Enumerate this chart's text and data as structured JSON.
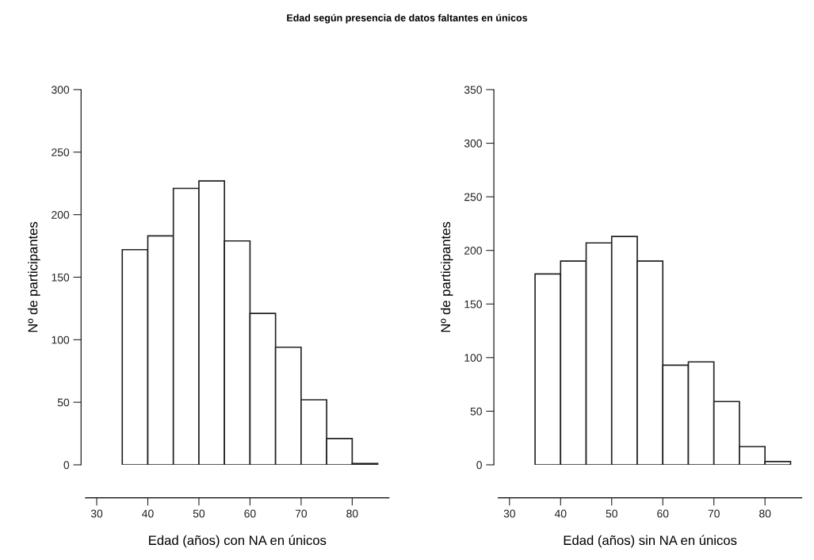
{
  "chart_data": [
    {
      "type": "histogram",
      "title": "Edad según presencia de datos faltantes en únicos",
      "xlabel": "Edad (años) con NA en únicos",
      "ylabel": "Nº de participantes",
      "bins": [
        35,
        40,
        45,
        50,
        55,
        60,
        65,
        70,
        75,
        80,
        85
      ],
      "values": [
        172,
        183,
        221,
        227,
        179,
        121,
        94,
        52,
        21,
        1
      ],
      "color": "#ffffff",
      "grid": false,
      "xlim": [
        27.8,
        87.2
      ],
      "xticks": [
        30,
        40,
        50,
        60,
        70,
        80
      ],
      "ylim": [
        0,
        300
      ],
      "yticks": [
        0,
        50,
        100,
        150,
        200,
        250,
        300
      ]
    },
    {
      "type": "histogram",
      "xlabel": "Edad (años) sin NA en únicos",
      "ylabel": "Nº de participantes",
      "bins": [
        35,
        40,
        45,
        50,
        55,
        60,
        65,
        70,
        75,
        80,
        85
      ],
      "values": [
        178,
        190,
        207,
        213,
        190,
        93,
        96,
        59,
        17,
        3
      ],
      "color": "#ffffff",
      "grid": false,
      "xlim": [
        27.8,
        87.2
      ],
      "xticks": [
        30,
        40,
        50,
        60,
        70,
        80
      ],
      "ylim": [
        0,
        350
      ],
      "yticks": [
        0,
        50,
        100,
        150,
        200,
        250,
        300,
        350
      ]
    }
  ]
}
